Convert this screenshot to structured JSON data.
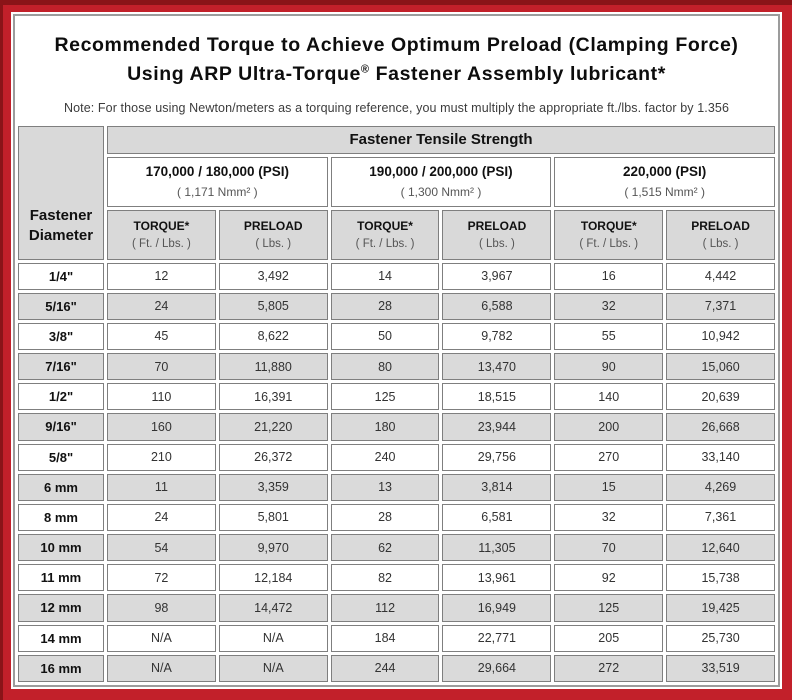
{
  "colors": {
    "frame_red": "#c2202a",
    "frame_dark_red": "#8a1418",
    "shaded_cell_gray": "#dadada",
    "header_gray": "#d9d9d9",
    "cell_border_gray": "#7f7f7f"
  },
  "title": {
    "line1": "Recommended Torque to Achieve Optimum Preload (Clamping Force)",
    "line2_pre": "Using ARP Ultra-Torque",
    "line2_reg_mark": "®",
    "line2_post": " Fastener Assembly lubricant*",
    "note": "Note: For those using Newton/meters as a torquing reference, you must multiply the appropriate ft./lbs. factor by 1.356"
  },
  "table": {
    "corner_line1": "Fastener",
    "corner_line2": "Diameter",
    "tensile_header": "Fastener Tensile Strength",
    "groups": [
      {
        "psi": "170,000 / 180,000 (PSI)",
        "nmm": "( 1,171 Nmm² )"
      },
      {
        "psi": "190,000 / 200,000 (PSI)",
        "nmm": "( 1,300 Nmm² )"
      },
      {
        "psi": "220,000 (PSI)",
        "nmm": "( 1,515 Nmm² )"
      }
    ],
    "col_headers": {
      "torque_label": "TORQUE*",
      "torque_unit": "( Ft. / Lbs. )",
      "preload_label": "PRELOAD",
      "preload_unit": "( Lbs. )"
    },
    "rows": [
      {
        "dia": "1/4\"",
        "values": [
          "12",
          "3,492",
          "14",
          "3,967",
          "16",
          "4,442"
        ]
      },
      {
        "dia": "5/16\"",
        "values": [
          "24",
          "5,805",
          "28",
          "6,588",
          "32",
          "7,371"
        ]
      },
      {
        "dia": "3/8\"",
        "values": [
          "45",
          "8,622",
          "50",
          "9,782",
          "55",
          "10,942"
        ]
      },
      {
        "dia": "7/16\"",
        "values": [
          "70",
          "11,880",
          "80",
          "13,470",
          "90",
          "15,060"
        ]
      },
      {
        "dia": "1/2\"",
        "values": [
          "110",
          "16,391",
          "125",
          "18,515",
          "140",
          "20,639"
        ]
      },
      {
        "dia": "9/16\"",
        "values": [
          "160",
          "21,220",
          "180",
          "23,944",
          "200",
          "26,668"
        ]
      },
      {
        "dia": "5/8\"",
        "values": [
          "210",
          "26,372",
          "240",
          "29,756",
          "270",
          "33,140"
        ]
      },
      {
        "dia": "6 mm",
        "values": [
          "11",
          "3,359",
          "13",
          "3,814",
          "15",
          "4,269"
        ]
      },
      {
        "dia": "8 mm",
        "values": [
          "24",
          "5,801",
          "28",
          "6,581",
          "32",
          "7,361"
        ]
      },
      {
        "dia": "10 mm",
        "values": [
          "54",
          "9,970",
          "62",
          "11,305",
          "70",
          "12,640"
        ]
      },
      {
        "dia": "11 mm",
        "values": [
          "72",
          "12,184",
          "82",
          "13,961",
          "92",
          "15,738"
        ]
      },
      {
        "dia": "12 mm",
        "values": [
          "98",
          "14,472",
          "112",
          "16,949",
          "125",
          "19,425"
        ]
      },
      {
        "dia": "14 mm",
        "values": [
          "N/A",
          "N/A",
          "184",
          "22,771",
          "205",
          "25,730"
        ]
      },
      {
        "dia": "16 mm",
        "values": [
          "N/A",
          "N/A",
          "244",
          "29,664",
          "272",
          "33,519"
        ]
      }
    ]
  }
}
